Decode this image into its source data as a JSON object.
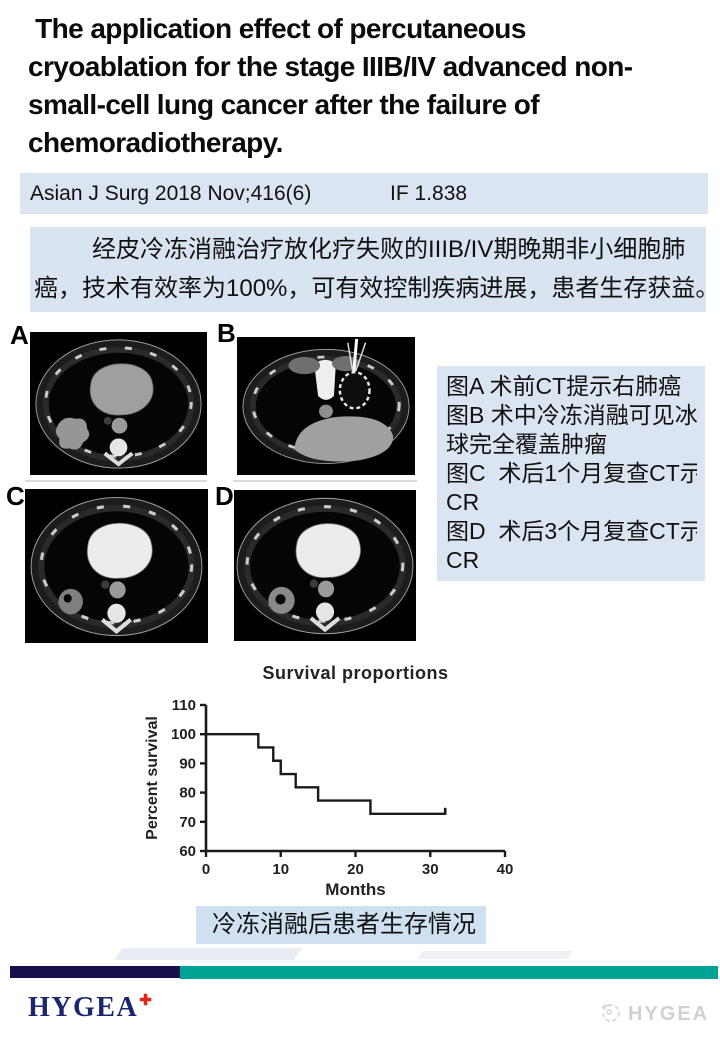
{
  "title": {
    "lines": [
      " The application effect of percutaneous",
      "cryoablation for the stage IIIB/IV advanced non-",
      "small-cell lung cancer after the failure of",
      "chemoradiotherapy."
    ]
  },
  "journal": {
    "reference": "Asian J Surg 2018 Nov;416(6)",
    "impact_factor": "IF 1.838"
  },
  "summary": {
    "lines": [
      "经皮冷冻消融治疗放化疗失败的IIIB/IV期晚期非小细胞肺",
      "癌，技术有效率为100%，可有效控制疾病进展，患者生存获益。"
    ]
  },
  "ct_figure": {
    "labels": [
      "A",
      "B",
      "C",
      "D"
    ]
  },
  "figure_notes": {
    "lines": [
      "图A 术前CT提示右肺癌",
      "图B 术中冷冻消融可见冰",
      "球完全覆盖肿瘤",
      "图C  术后1个月复查CT示",
      "CR",
      "图D  术后3个月复查CT示",
      "CR"
    ]
  },
  "chart_data": {
    "type": "line",
    "subtype": "kaplan-meier-step",
    "title": "Survival proportions",
    "xlabel": "Months",
    "ylabel": "Percent survival",
    "xlim": [
      0,
      40
    ],
    "ylim": [
      60,
      110
    ],
    "xticks": [
      0,
      10,
      20,
      30,
      40
    ],
    "yticks": [
      60,
      70,
      80,
      90,
      100,
      110
    ],
    "grid": false,
    "line_color": "#1a1a1a",
    "series": [
      {
        "name": "Percent survival",
        "x": [
          0,
          7,
          7,
          9,
          9,
          10,
          10,
          12,
          12,
          15,
          15,
          22,
          22,
          32
        ],
        "y": [
          100,
          100,
          95.45,
          95.45,
          90.91,
          90.91,
          86.36,
          86.36,
          81.82,
          81.82,
          77.27,
          77.27,
          72.73,
          72.73
        ]
      }
    ],
    "censor_marks": [
      {
        "x": 32,
        "y": 72.73
      }
    ]
  },
  "chart_caption": "冷冻消融后患者生存情况",
  "footer": {
    "logo_text": "HYGEA",
    "logo_mark": "✚",
    "watermark_text": "HYGEA"
  },
  "colors": {
    "box_blue": "#dbe5f1",
    "summary_blue": "#d9e4f1",
    "caption_blue": "#cfe0f1",
    "footer_navy": "#14104d",
    "footer_teal": "#00a295",
    "logo_navy": "#1b2671",
    "logo_red": "#e1251b",
    "watermark_grey": "#c9c9c9",
    "chart_line": "#1a1a1a"
  }
}
